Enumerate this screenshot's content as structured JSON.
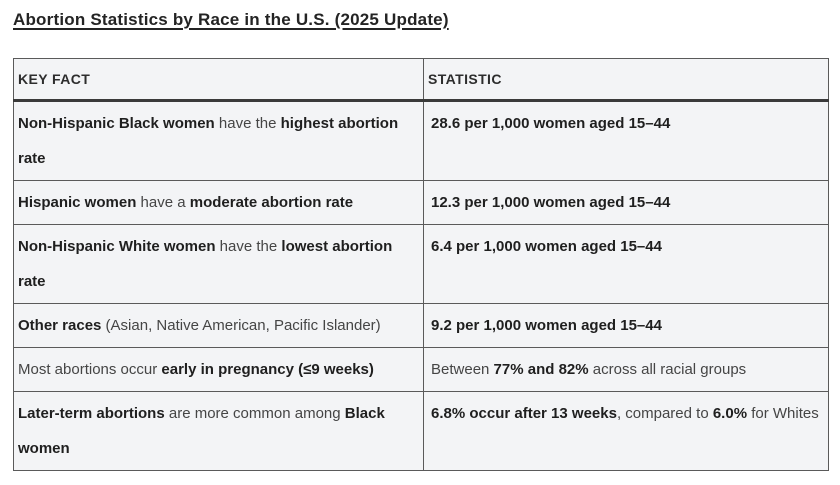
{
  "page": {
    "title": "Abortion Statistics by Race in the U.S. (2025 Update)"
  },
  "table": {
    "headers": [
      {
        "label": "KEY FACT"
      },
      {
        "label": "STATISTIC"
      }
    ],
    "rows": [
      {
        "fact": [
          {
            "text": "Non-Hispanic Black women",
            "bold": true
          },
          {
            "text": " have the ",
            "bold": false
          },
          {
            "text": "highest abortion rate",
            "bold": true
          }
        ],
        "stat": [
          {
            "text": "28.6 per 1,000 women aged 15–44",
            "bold": true
          }
        ]
      },
      {
        "fact": [
          {
            "text": "Hispanic women",
            "bold": true
          },
          {
            "text": " have a ",
            "bold": false
          },
          {
            "text": "moderate abortion rate",
            "bold": true
          }
        ],
        "stat": [
          {
            "text": "12.3 per 1,000 women aged 15–44",
            "bold": true
          }
        ]
      },
      {
        "fact": [
          {
            "text": "Non-Hispanic White women",
            "bold": true
          },
          {
            "text": " have the ",
            "bold": false
          },
          {
            "text": "lowest abortion rate",
            "bold": true
          }
        ],
        "stat": [
          {
            "text": "6.4 per 1,000 women aged 15–44",
            "bold": true
          }
        ]
      },
      {
        "fact": [
          {
            "text": "Other races",
            "bold": true
          },
          {
            "text": " (Asian, Native American, Pacific Islander)",
            "bold": false
          }
        ],
        "stat": [
          {
            "text": "9.2 per 1,000 women aged 15–44",
            "bold": true
          }
        ]
      },
      {
        "fact": [
          {
            "text": "Most abortions occur ",
            "bold": false
          },
          {
            "text": "early in pregnancy (≤9 weeks)",
            "bold": true
          }
        ],
        "stat": [
          {
            "text": "Between ",
            "bold": false
          },
          {
            "text": "77% and 82%",
            "bold": true
          },
          {
            "text": " across all racial groups",
            "bold": false
          }
        ]
      },
      {
        "fact": [
          {
            "text": "Later-term abortions",
            "bold": true
          },
          {
            "text": " are more common among ",
            "bold": false
          },
          {
            "text": "Black women",
            "bold": true
          }
        ],
        "stat": [
          {
            "text": "6.8% occur after 13 weeks",
            "bold": true
          },
          {
            "text": ", compared to ",
            "bold": false
          },
          {
            "text": "6.0%",
            "bold": true
          },
          {
            "text": " for Whites",
            "bold": false
          }
        ]
      }
    ]
  },
  "colors": {
    "page_background": "#ffffff",
    "cell_background": "#f3f4f6",
    "thin_border": "#5a5a5a",
    "header_bottom_border": "#3a3a3a",
    "regular_text": "#454545",
    "bold_text": "#1f1f1f",
    "title_text": "#242424"
  }
}
